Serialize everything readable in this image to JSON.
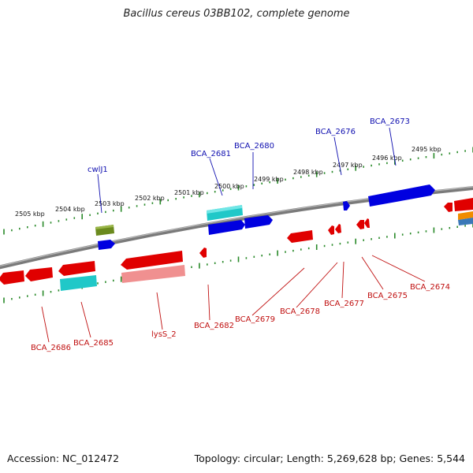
{
  "title": "Bacillus cereus 03BB102, complete genome",
  "accession": "Accession: NC_012472",
  "summary": "Topology: circular; Length: 5,269,628 bp; Genes: 5,544",
  "colors": {
    "forward_cds": "#0000e0",
    "reverse_cds": "#e00000",
    "rna_cyan": "#20c8c8",
    "pseudo_olive": "#6b8a1e",
    "light_red": "#f09090",
    "backbone": "#808080",
    "tick": "#2a8a2a",
    "forward_label": "#1010b0",
    "reverse_label": "#c01010"
  },
  "kbp_labels": [
    "2505 kbp",
    "2504 kbp",
    "2503 kbp",
    "2502 kbp",
    "2501 kbp",
    "2500 kbp",
    "2499 kbp",
    "2498 kbp",
    "2497 kbp",
    "2496 kbp",
    "2495 kbp"
  ],
  "forward_gene_labels": [
    "cwlJ1",
    "BCA_2681",
    "BCA_2680",
    "BCA_2676",
    "BCA_2673"
  ],
  "reverse_gene_labels": [
    "BCA_2686",
    "BCA_2685",
    "lysS_2",
    "BCA_2682",
    "BCA_2679",
    "BCA_2678",
    "BCA_2677",
    "BCA_2675",
    "BCA_2674"
  ]
}
